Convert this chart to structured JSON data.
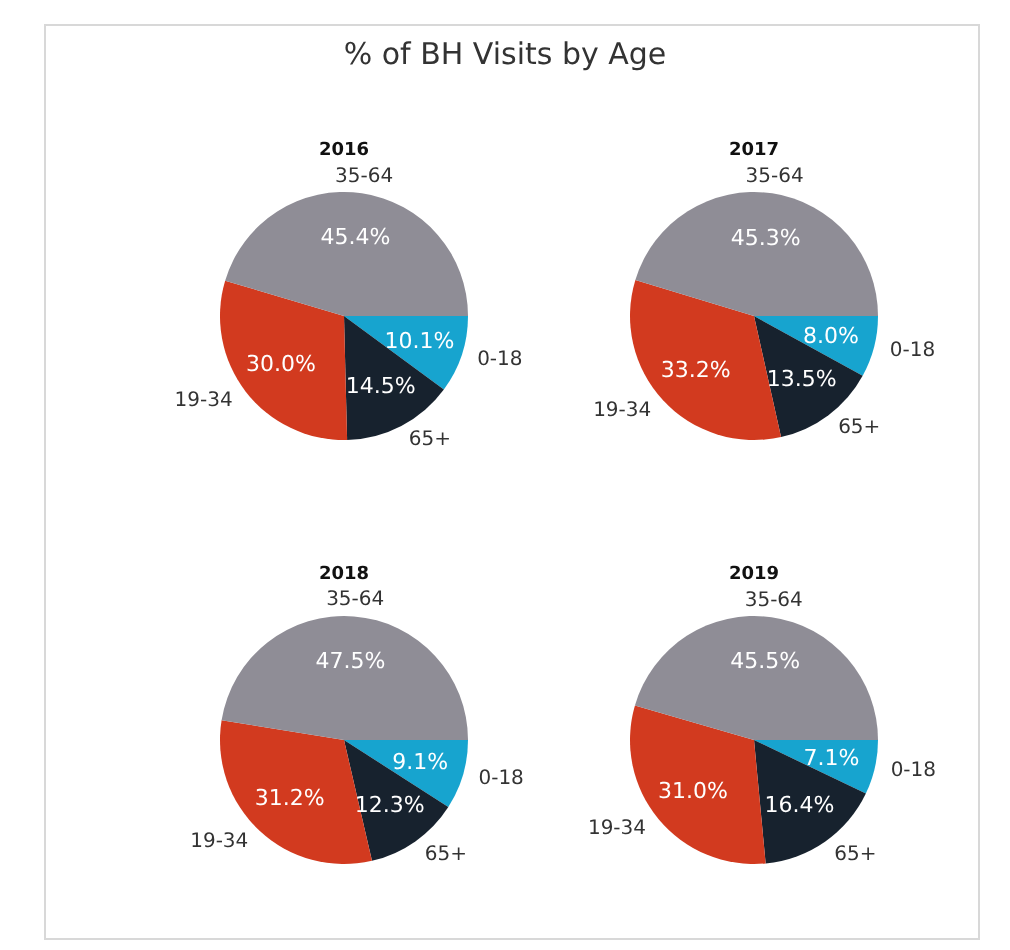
{
  "chart_data": [
    {
      "type": "other",
      "title": "% of BH Visits by Age"
    },
    {
      "type": "pie",
      "title": "2016",
      "categories": [
        "0-18",
        "65+",
        "19-34",
        "35-64"
      ],
      "values": [
        10.1,
        14.5,
        30.0,
        45.4
      ],
      "colors": [
        "#17a4cf",
        "#17222e",
        "#d23a1f",
        "#8f8d96"
      ],
      "value_labels": [
        "10.1%",
        "14.5%",
        "30.0%",
        "45.4%"
      ]
    },
    {
      "type": "pie",
      "title": "2017",
      "categories": [
        "0-18",
        "65+",
        "19-34",
        "35-64"
      ],
      "values": [
        8.0,
        13.5,
        33.2,
        45.3
      ],
      "colors": [
        "#17a4cf",
        "#17222e",
        "#d23a1f",
        "#8f8d96"
      ],
      "value_labels": [
        "8.0%",
        "13.5%",
        "33.2%",
        "45.3%"
      ]
    },
    {
      "type": "pie",
      "title": "2018",
      "categories": [
        "0-18",
        "65+",
        "19-34",
        "35-64"
      ],
      "values": [
        9.1,
        12.3,
        31.2,
        47.5
      ],
      "colors": [
        "#17a4cf",
        "#17222e",
        "#d23a1f",
        "#8f8d96"
      ],
      "value_labels": [
        "9.1%",
        "12.3%",
        "31.2%",
        "47.5%"
      ]
    },
    {
      "type": "pie",
      "title": "2019",
      "categories": [
        "0-18",
        "65+",
        "19-34",
        "35-64"
      ],
      "values": [
        7.1,
        16.4,
        31.0,
        45.5
      ],
      "colors": [
        "#17a4cf",
        "#17222e",
        "#d23a1f",
        "#8f8d96"
      ],
      "value_labels": [
        "7.1%",
        "16.4%",
        "31.0%",
        "45.5%"
      ]
    }
  ]
}
